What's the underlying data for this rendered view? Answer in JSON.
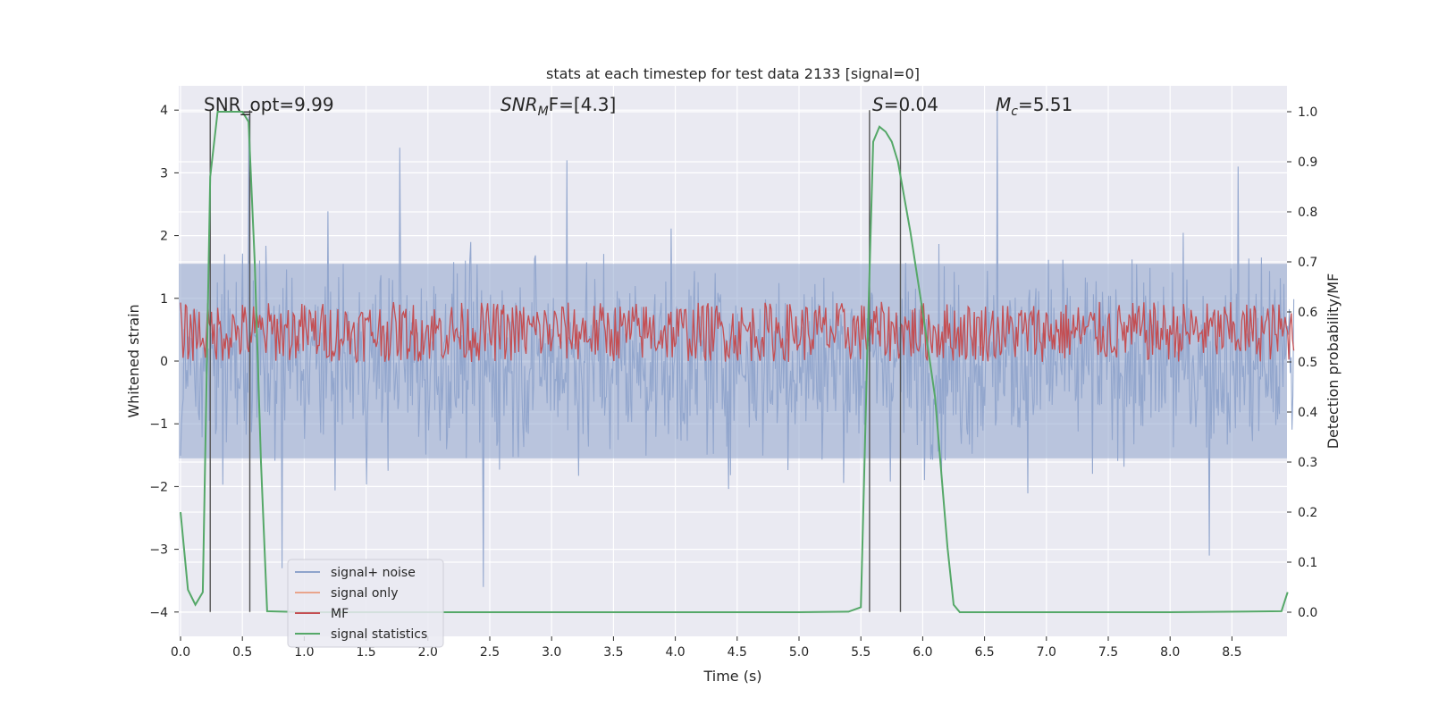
{
  "chart_data": {
    "type": "line",
    "title": "stats at each timestep for test data 2133 [signal=0]",
    "xlabel": "Time (s)",
    "ylabel": "Whitened strain",
    "ylabel_right": "Detection probability/MF",
    "xlim": [
      0.0,
      9.0
    ],
    "ylim": [
      -4.4,
      4.4
    ],
    "ylim_right": [
      -0.05,
      1.05
    ],
    "x_ticks": [
      0.0,
      0.5,
      1.0,
      1.5,
      2.0,
      2.5,
      3.0,
      3.5,
      4.0,
      4.5,
      5.0,
      5.5,
      6.0,
      6.5,
      7.0,
      7.5,
      8.0,
      8.5
    ],
    "x_tick_labels": [
      "0.0",
      "0.5",
      "1.0",
      "1.5",
      "2.0",
      "2.5",
      "3.0",
      "3.5",
      "4.0",
      "4.5",
      "5.0",
      "5.5",
      "6.0",
      "6.5",
      "7.0",
      "7.5",
      "8.0",
      "8.5"
    ],
    "y_ticks": [
      -4,
      -3,
      -2,
      -1,
      0,
      1,
      2,
      3,
      4
    ],
    "y_tick_labels": [
      "−4",
      "−3",
      "−2",
      "−1",
      "0",
      "1",
      "2",
      "3",
      "4"
    ],
    "y_right_ticks": [
      0.0,
      0.1,
      0.2,
      0.3,
      0.4,
      0.5,
      0.6,
      0.7,
      0.8,
      0.9,
      1.0
    ],
    "y_right_tick_labels": [
      "0.0",
      "0.1",
      "0.2",
      "0.3",
      "0.4",
      "0.5",
      "0.6",
      "0.7",
      "0.8",
      "0.9",
      "1.0"
    ],
    "grid": true,
    "legend": {
      "location": "lower-left",
      "entries": [
        {
          "label": "signal+ noise",
          "color": "#8fa4cc"
        },
        {
          "label": "signal only",
          "color": "#e9a58c"
        },
        {
          "label": "MF",
          "color": "#c44e52"
        },
        {
          "label": "signal statistics",
          "color": "#55a868"
        }
      ]
    },
    "annotations": [
      {
        "text": "SNR_opt=9.99"
      },
      {
        "text": "SNR",
        "sub": "M",
        "rest": "F=[4.3]"
      },
      {
        "text": "S",
        "rest": "=0.04"
      },
      {
        "text": "M",
        "sub": "c",
        "rest": "=5.51"
      }
    ],
    "vertical_lines_x": [
      0.24,
      0.56,
      5.57,
      5.82
    ],
    "series": [
      {
        "name": "signal+ noise",
        "axis": "left",
        "description": "whitened noise, approx. Gaussian, amplitude mostly within -3 to 3.4",
        "x_range": [
          0.0,
          9.0
        ],
        "peaks": [
          [
            0.55,
            3.9
          ],
          [
            1.77,
            3.4
          ],
          [
            3.12,
            3.2
          ],
          [
            6.6,
            4.0
          ],
          [
            8.55,
            3.1
          ],
          [
            2.45,
            -3.6
          ],
          [
            8.32,
            -3.1
          ],
          [
            0.82,
            -3.3
          ]
        ],
        "color": "#8fa4cc"
      },
      {
        "name": "MF",
        "axis": "right",
        "description": "matched-filter output, fluctuating mostly between 0.5 and 0.6",
        "x_range": [
          0.0,
          9.0
        ],
        "y_range": [
          0.5,
          0.62
        ],
        "color": "#c44e52"
      },
      {
        "name": "signal statistics",
        "axis": "right",
        "x": [
          0.0,
          0.06,
          0.12,
          0.18,
          0.24,
          0.3,
          0.5,
          0.55,
          0.6,
          0.65,
          0.7,
          1.0,
          2.0,
          3.0,
          4.0,
          5.0,
          5.4,
          5.5,
          5.55,
          5.6,
          5.65,
          5.7,
          5.75,
          5.8,
          5.9,
          6.0,
          6.1,
          6.2,
          6.25,
          6.3,
          7.0,
          8.0,
          8.9,
          8.95
        ],
        "y": [
          0.2,
          0.045,
          0.015,
          0.04,
          0.87,
          1.0,
          1.0,
          0.98,
          0.7,
          0.3,
          0.002,
          0.0,
          0.0,
          0.0,
          0.0,
          0.0,
          0.001,
          0.01,
          0.5,
          0.94,
          0.97,
          0.96,
          0.94,
          0.9,
          0.76,
          0.6,
          0.43,
          0.13,
          0.015,
          0.0,
          0.0,
          0.0,
          0.002,
          0.04
        ],
        "color": "#55a868"
      }
    ]
  }
}
